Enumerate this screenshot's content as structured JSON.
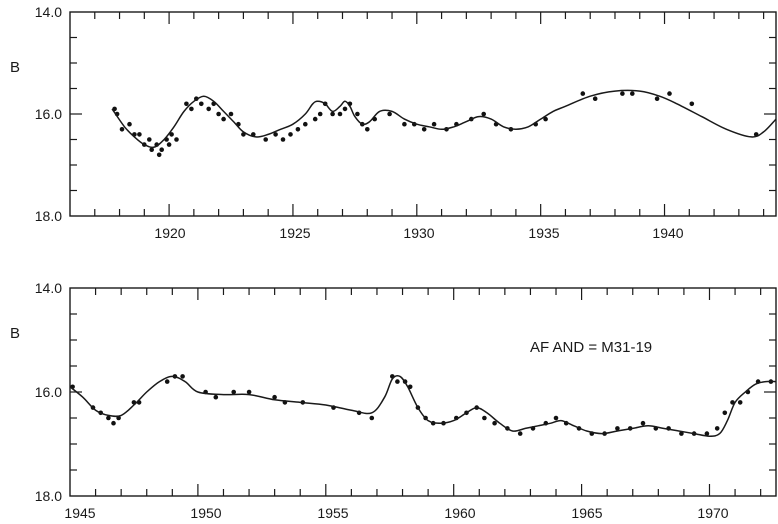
{
  "chart_data": [
    {
      "type": "scatter",
      "title": "",
      "xlabel": "",
      "ylabel": "B",
      "xlim": [
        1916,
        1944.5
      ],
      "ylim": [
        18.0,
        14.0
      ],
      "y_inverted": true,
      "x_tick_labels": [
        "1920",
        "1925",
        "1930",
        "1935",
        "1940"
      ],
      "y_tick_labels": [
        "14.0",
        "16.0",
        "18.0"
      ],
      "series": [
        {
          "kind": "points",
          "x": [
            1917.8,
            1917.9,
            1918.1,
            1918.4,
            1918.6,
            1918.8,
            1919.0,
            1919.2,
            1919.3,
            1919.5,
            1919.6,
            1919.7,
            1919.9,
            1920.0,
            1920.1,
            1920.3,
            1920.7,
            1920.9,
            1921.1,
            1921.3,
            1921.6,
            1921.8,
            1922.0,
            1922.2,
            1922.5,
            1922.8,
            1923.0,
            1923.4,
            1923.9,
            1924.3,
            1924.6,
            1924.9,
            1925.2,
            1925.5,
            1925.9,
            1926.1,
            1926.3,
            1926.6,
            1926.9,
            1927.1,
            1927.3,
            1927.6,
            1927.8,
            1928.0,
            1928.3,
            1928.9,
            1929.5,
            1929.9,
            1930.3,
            1930.7,
            1931.2,
            1931.6,
            1932.2,
            1932.7,
            1933.2,
            1933.8,
            1934.8,
            1935.2,
            1936.7,
            1937.2,
            1938.3,
            1938.7,
            1939.7,
            1940.2,
            1941.1,
            1943.7
          ],
          "y": [
            15.9,
            16.0,
            16.3,
            16.2,
            16.4,
            16.4,
            16.6,
            16.5,
            16.7,
            16.6,
            16.8,
            16.7,
            16.5,
            16.6,
            16.4,
            16.5,
            15.8,
            15.9,
            15.7,
            15.8,
            15.9,
            15.8,
            16.0,
            16.1,
            16.0,
            16.2,
            16.4,
            16.4,
            16.5,
            16.4,
            16.5,
            16.4,
            16.3,
            16.2,
            16.1,
            16.0,
            15.8,
            16.0,
            16.0,
            15.9,
            15.8,
            16.0,
            16.2,
            16.3,
            16.1,
            16.0,
            16.2,
            16.2,
            16.3,
            16.2,
            16.3,
            16.2,
            16.1,
            16.0,
            16.2,
            16.3,
            16.2,
            16.1,
            15.6,
            15.7,
            15.6,
            15.6,
            15.7,
            15.6,
            15.8,
            16.4
          ]
        },
        {
          "kind": "curve",
          "x": [
            1917.7,
            1918.2,
            1918.6,
            1919.0,
            1919.4,
            1919.8,
            1920.2,
            1920.6,
            1921.0,
            1921.4,
            1921.8,
            1922.2,
            1922.6,
            1923.0,
            1923.5,
            1924.0,
            1924.5,
            1925.0,
            1925.5,
            1925.8,
            1926.0,
            1926.3,
            1926.6,
            1926.9,
            1927.1,
            1927.3,
            1927.5,
            1927.8,
            1928.1,
            1928.5,
            1929.0,
            1929.5,
            1930.0,
            1930.5,
            1931.0,
            1931.5,
            1932.0,
            1932.5,
            1933.0,
            1933.5,
            1934.0,
            1934.5,
            1935.0,
            1935.5,
            1936.0,
            1937.0,
            1938.0,
            1939.0,
            1939.8,
            1940.5,
            1941.5,
            1942.5,
            1943.5,
            1944.0,
            1944.5
          ],
          "y": [
            15.9,
            16.25,
            16.45,
            16.6,
            16.65,
            16.5,
            16.25,
            15.95,
            15.75,
            15.65,
            15.75,
            15.95,
            16.15,
            16.35,
            16.45,
            16.4,
            16.3,
            16.2,
            16.0,
            15.8,
            15.75,
            15.8,
            15.95,
            15.85,
            15.75,
            15.85,
            16.05,
            16.2,
            16.15,
            15.95,
            15.95,
            16.1,
            16.2,
            16.25,
            16.3,
            16.25,
            16.15,
            16.05,
            16.1,
            16.25,
            16.3,
            16.25,
            16.1,
            15.95,
            15.85,
            15.65,
            15.55,
            15.55,
            15.65,
            15.8,
            16.05,
            16.3,
            16.45,
            16.35,
            16.1
          ]
        }
      ]
    },
    {
      "type": "scatter",
      "title": "",
      "xlabel": "",
      "ylabel": "B",
      "xlim": [
        1945,
        1972.6
      ],
      "ylim": [
        18.0,
        14.0
      ],
      "y_inverted": true,
      "x_tick_labels": [
        "1945",
        "1950",
        "1955",
        "1960",
        "1965",
        "1970"
      ],
      "y_tick_labels": [
        "14.0",
        "16.0",
        "18.0"
      ],
      "annotation": "AF AND = M31-19",
      "series": [
        {
          "kind": "points",
          "x": [
            1945.1,
            1945.9,
            1946.2,
            1946.5,
            1946.7,
            1946.9,
            1947.5,
            1947.7,
            1948.8,
            1949.1,
            1949.4,
            1950.3,
            1950.7,
            1951.4,
            1952.0,
            1953.0,
            1953.4,
            1954.1,
            1955.3,
            1956.3,
            1956.8,
            1957.6,
            1957.8,
            1958.1,
            1958.3,
            1958.6,
            1958.9,
            1959.2,
            1959.6,
            1960.1,
            1960.5,
            1960.9,
            1961.2,
            1961.6,
            1962.1,
            1962.6,
            1963.1,
            1963.6,
            1964.0,
            1964.4,
            1964.9,
            1965.4,
            1965.9,
            1966.4,
            1966.9,
            1967.4,
            1967.9,
            1968.4,
            1968.9,
            1969.4,
            1969.9,
            1970.3,
            1970.6,
            1970.9,
            1971.2,
            1971.5,
            1971.9,
            1972.4
          ],
          "y": [
            15.9,
            16.3,
            16.4,
            16.5,
            16.6,
            16.5,
            16.2,
            16.2,
            15.8,
            15.7,
            15.7,
            16.0,
            16.1,
            16.0,
            16.0,
            16.1,
            16.2,
            16.2,
            16.3,
            16.4,
            16.5,
            15.7,
            15.8,
            15.8,
            15.9,
            16.3,
            16.5,
            16.6,
            16.6,
            16.5,
            16.4,
            16.3,
            16.5,
            16.6,
            16.7,
            16.8,
            16.7,
            16.6,
            16.5,
            16.6,
            16.7,
            16.8,
            16.8,
            16.7,
            16.7,
            16.6,
            16.7,
            16.7,
            16.8,
            16.8,
            16.8,
            16.7,
            16.4,
            16.2,
            16.2,
            16.0,
            15.8,
            15.8
          ]
        },
        {
          "kind": "curve",
          "x": [
            1945.0,
            1945.5,
            1946.0,
            1946.5,
            1947.0,
            1947.5,
            1948.0,
            1948.5,
            1949.0,
            1949.5,
            1950.0,
            1951.0,
            1952.0,
            1953.0,
            1954.0,
            1955.0,
            1956.0,
            1956.8,
            1957.3,
            1957.6,
            1957.9,
            1958.2,
            1958.6,
            1959.0,
            1959.5,
            1960.0,
            1960.5,
            1960.9,
            1961.3,
            1961.8,
            1962.3,
            1962.8,
            1963.3,
            1963.8,
            1964.2,
            1964.7,
            1965.2,
            1965.8,
            1966.4,
            1967.0,
            1967.6,
            1968.2,
            1968.8,
            1969.4,
            1970.0,
            1970.4,
            1970.7,
            1971.0,
            1971.4,
            1971.8,
            1972.2,
            1972.6
          ],
          "y": [
            15.9,
            16.1,
            16.35,
            16.45,
            16.45,
            16.25,
            16.0,
            15.8,
            15.7,
            15.8,
            16.0,
            16.05,
            16.05,
            16.15,
            16.2,
            16.25,
            16.35,
            16.4,
            16.1,
            15.75,
            15.7,
            15.9,
            16.3,
            16.55,
            16.6,
            16.55,
            16.4,
            16.3,
            16.4,
            16.6,
            16.75,
            16.7,
            16.65,
            16.6,
            16.55,
            16.65,
            16.75,
            16.8,
            16.75,
            16.7,
            16.65,
            16.7,
            16.75,
            16.8,
            16.85,
            16.8,
            16.55,
            16.2,
            16.0,
            15.85,
            15.8,
            15.8
          ]
        }
      ]
    }
  ]
}
